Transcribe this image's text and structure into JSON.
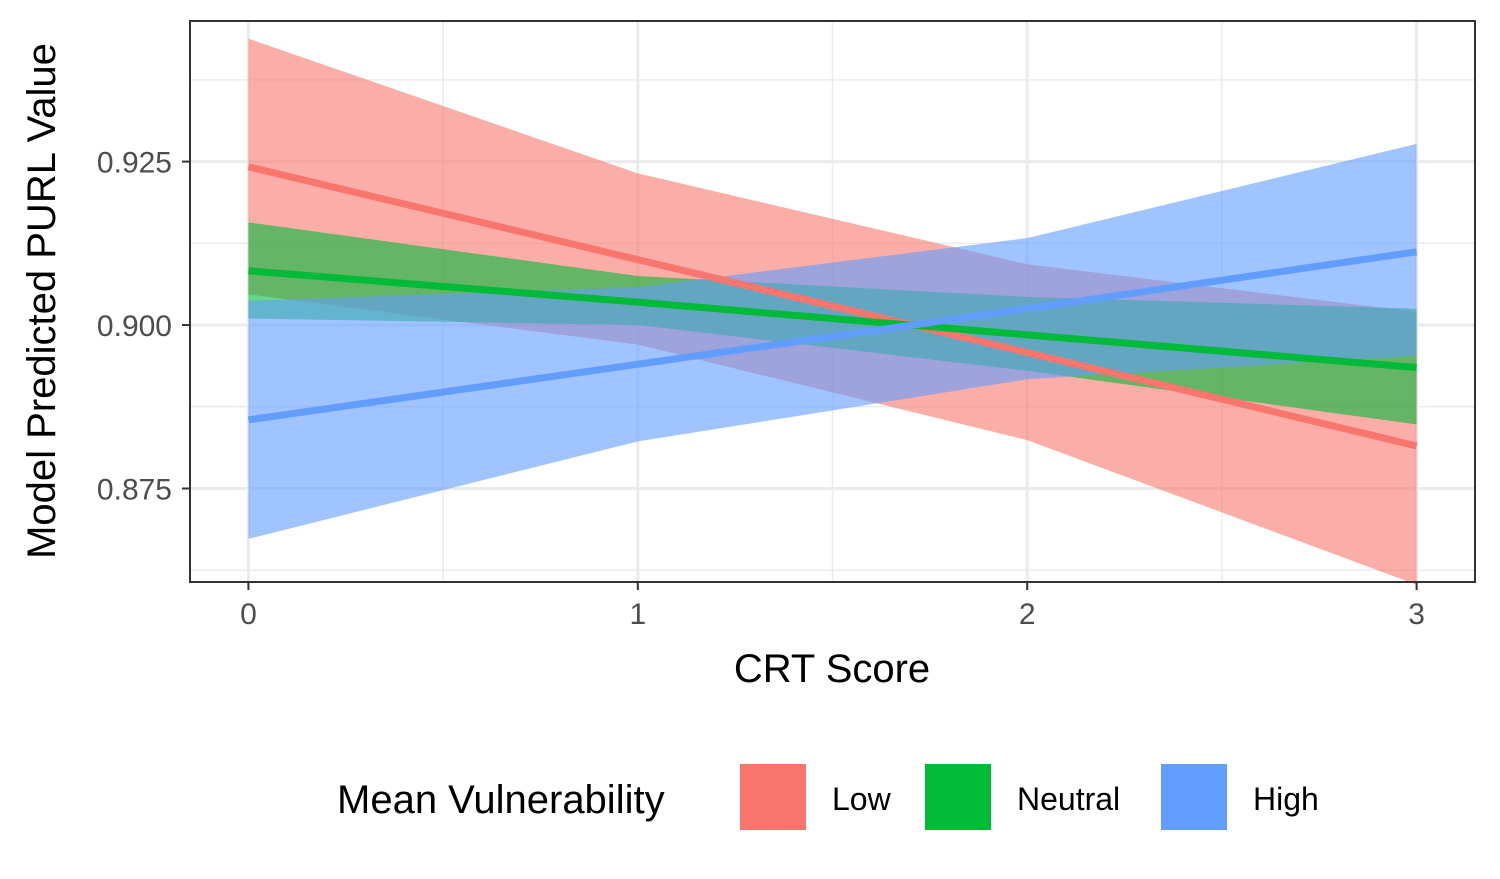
{
  "chart_data": {
    "type": "line",
    "title": "",
    "xlabel": "CRT Score",
    "ylabel": "Model Predicted PURL Value",
    "xlim": [
      -0.15,
      3.15
    ],
    "ylim": [
      0.8607,
      0.9465
    ],
    "x_ticks": [
      {
        "value": 0,
        "label": "0"
      },
      {
        "value": 1,
        "label": "1"
      },
      {
        "value": 2,
        "label": "2"
      },
      {
        "value": 3,
        "label": "3"
      }
    ],
    "x_minor_ticks": [
      0.5,
      1.5,
      2.5
    ],
    "y_ticks": [
      {
        "value": 0.875,
        "label": "0.875"
      },
      {
        "value": 0.9,
        "label": "0.900"
      },
      {
        "value": 0.925,
        "label": "0.925"
      }
    ],
    "y_minor_ticks": [
      0.8625,
      0.8875,
      0.9125,
      0.9375
    ],
    "grid": true,
    "legend": {
      "title": "Mean Vulnerability",
      "position": "bottom"
    },
    "series": [
      {
        "name": "Low",
        "color": "#F8766D",
        "x": [
          0,
          1,
          2,
          3
        ],
        "values": [
          0.9242,
          0.91,
          0.8958,
          0.8815
        ],
        "lower": [
          0.9047,
          0.897,
          0.8824,
          0.8603
        ],
        "upper": [
          0.9438,
          0.9232,
          0.9093,
          0.902
        ]
      },
      {
        "name": "Neutral",
        "color": "#00BA38",
        "x": [
          0,
          1,
          2,
          3
        ],
        "values": [
          0.9083,
          0.9035,
          0.8985,
          0.8935
        ],
        "lower": [
          0.901,
          0.9,
          0.893,
          0.8848
        ],
        "upper": [
          0.9157,
          0.9075,
          0.9043,
          0.9025
        ]
      },
      {
        "name": "High",
        "color": "#619CFF",
        "x": [
          0,
          1,
          2,
          3
        ],
        "values": [
          0.8855,
          0.894,
          0.9025,
          0.9112
        ],
        "lower": [
          0.8673,
          0.8822,
          0.8917,
          0.8953
        ],
        "upper": [
          0.9037,
          0.9058,
          0.9133,
          0.9277
        ]
      }
    ]
  }
}
